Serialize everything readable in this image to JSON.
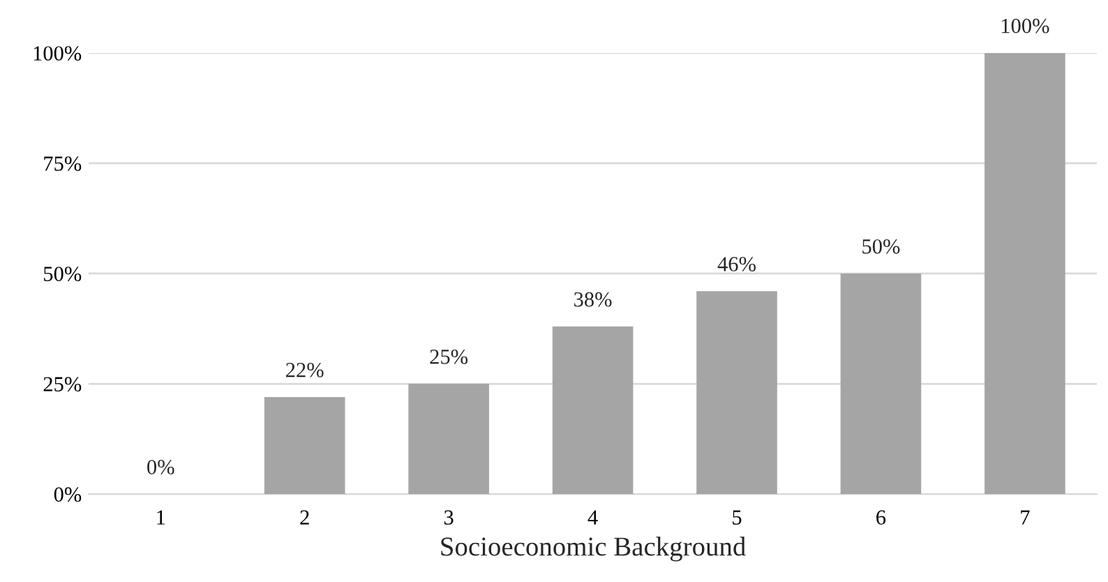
{
  "chart_data": {
    "type": "bar",
    "xlabel": "Socioeconomic Background",
    "categories": [
      "1",
      "2",
      "3",
      "4",
      "5",
      "6",
      "7"
    ],
    "values": [
      0,
      22,
      25,
      38,
      46,
      50,
      100
    ],
    "value_labels": [
      "0%",
      "22%",
      "25%",
      "38%",
      "46%",
      "50%",
      "100%"
    ],
    "color": "#a5a5a5",
    "ylim": [
      0,
      100
    ],
    "yticks": [
      {
        "value": 0,
        "label": "0%"
      },
      {
        "value": 25,
        "label": "25%"
      },
      {
        "value": 50,
        "label": "50%"
      },
      {
        "value": 75,
        "label": "75%"
      },
      {
        "value": 100,
        "label": "100%"
      }
    ],
    "grid": "y"
  }
}
